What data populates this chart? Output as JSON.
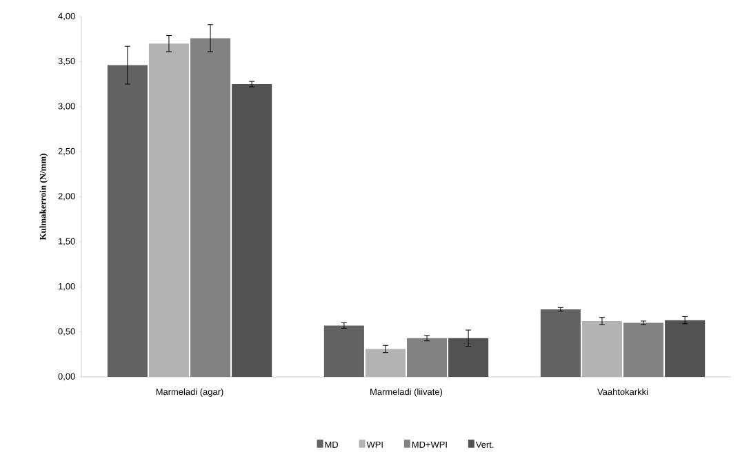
{
  "chart_data": {
    "type": "bar",
    "ylabel": "Kulmakerroin (N/mm)",
    "categories": [
      "Marmeladi (agar)",
      "Marmeladi (liivate)",
      "Vaahtokarkki"
    ],
    "series": [
      {
        "name": "MD",
        "color": "#636363",
        "values": [
          3.46,
          0.57,
          0.75
        ],
        "errors": [
          0.21,
          0.03,
          0.02
        ]
      },
      {
        "name": "WPI",
        "color": "#b3b3b3",
        "values": [
          3.7,
          0.31,
          0.62
        ],
        "errors": [
          0.09,
          0.04,
          0.04
        ]
      },
      {
        "name": "MD+WPI",
        "color": "#828282",
        "values": [
          3.76,
          0.43,
          0.6
        ],
        "errors": [
          0.15,
          0.03,
          0.02
        ]
      },
      {
        "name": "Vert.",
        "color": "#525252",
        "values": [
          3.25,
          0.43,
          0.63
        ],
        "errors": [
          0.03,
          0.09,
          0.04
        ]
      }
    ],
    "ylim": [
      0,
      4
    ],
    "yticks": [
      {
        "value": 0,
        "label": "0,00"
      },
      {
        "value": 0.5,
        "label": "0,50"
      },
      {
        "value": 1,
        "label": "1,00"
      },
      {
        "value": 1.5,
        "label": "1,50"
      },
      {
        "value": 2,
        "label": "2,00"
      },
      {
        "value": 2.5,
        "label": "2,50"
      },
      {
        "value": 3,
        "label": "3,00"
      },
      {
        "value": 3.5,
        "label": "3,50"
      },
      {
        "value": 4,
        "label": "4,00"
      }
    ],
    "grid": false,
    "legend": "bottom"
  }
}
